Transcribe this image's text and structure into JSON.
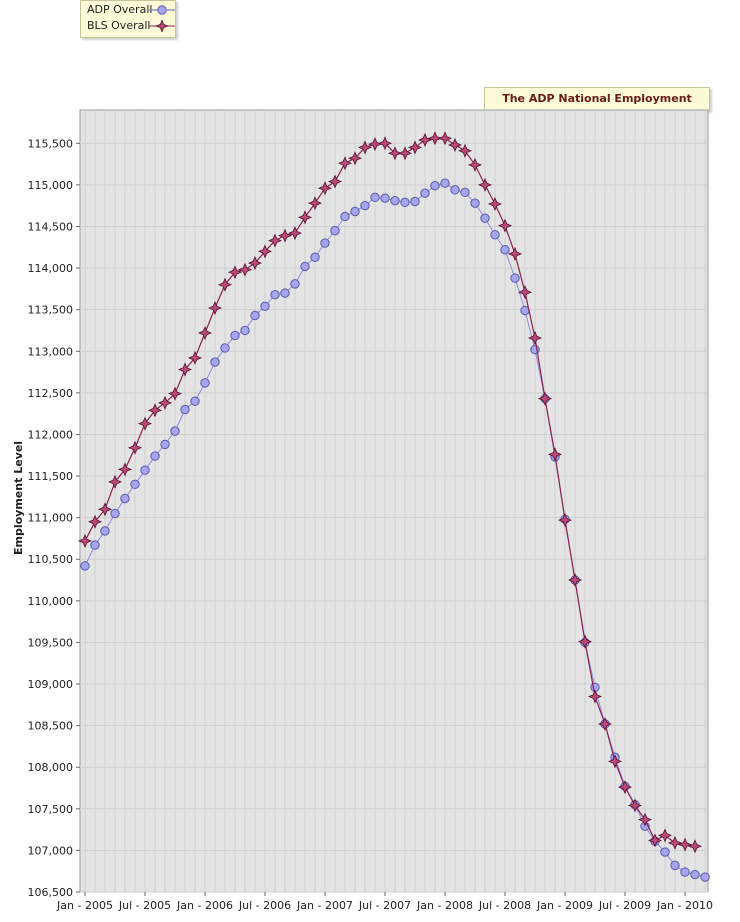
{
  "chart_data": {
    "type": "line",
    "title": "The ADP National Employment Report",
    "xlabel": "",
    "ylabel": "Employment Level",
    "ylim": [
      106500,
      115900
    ],
    "y_ticks": [
      106500,
      107000,
      107500,
      108000,
      108500,
      109000,
      109500,
      110000,
      110500,
      111000,
      111500,
      112000,
      112500,
      113000,
      113500,
      114000,
      114500,
      115000,
      115500
    ],
    "y_tick_labels": [
      "106,500",
      "107,000",
      "107,500",
      "108,000",
      "108,500",
      "109,000",
      "109,500",
      "110,000",
      "110,500",
      "111,000",
      "111,500",
      "112,000",
      "112,500",
      "113,000",
      "113,500",
      "114,000",
      "114,500",
      "115,000",
      "115,500"
    ],
    "x_tick_labels": [
      {
        "label": "Jan - 2005",
        "index": 0
      },
      {
        "label": "Jul - 2005",
        "index": 6
      },
      {
        "label": "Jan - 2006",
        "index": 12
      },
      {
        "label": "Jul - 2006",
        "index": 18
      },
      {
        "label": "Jan - 2007",
        "index": 24
      },
      {
        "label": "Jul - 2007",
        "index": 30
      },
      {
        "label": "Jan - 2008",
        "index": 36
      },
      {
        "label": "Jul - 2008",
        "index": 42
      },
      {
        "label": "Jan - 2009",
        "index": 48
      },
      {
        "label": "Jul - 2009",
        "index": 54
      },
      {
        "label": "Jan - 2010",
        "index": 60
      }
    ],
    "grid": true,
    "legend_position": "top-left",
    "series": [
      {
        "name": "ADP Overall",
        "color": "#9999ee",
        "marker": "circle",
        "values": [
          110420,
          110670,
          110840,
          111050,
          111230,
          111400,
          111570,
          111740,
          111880,
          112040,
          112300,
          112400,
          112620,
          112870,
          113040,
          113190,
          113250,
          113430,
          113540,
          113680,
          113700,
          113810,
          114020,
          114130,
          114300,
          114450,
          114620,
          114680,
          114750,
          114850,
          114840,
          114810,
          114790,
          114800,
          114900,
          114990,
          115020,
          114940,
          114910,
          114780,
          114600,
          114400,
          114220,
          113880,
          113490,
          113020,
          112430,
          111730,
          110980,
          110250,
          109500,
          108960,
          108520,
          108120,
          107770,
          107550,
          107290,
          107110,
          106980,
          106820,
          106740,
          106710,
          106680
        ]
      },
      {
        "name": "BLS Overall",
        "color": "#8a2050",
        "marker": "star",
        "values": [
          110720,
          110950,
          111100,
          111430,
          111580,
          111840,
          112130,
          112290,
          112380,
          112490,
          112780,
          112920,
          113220,
          113520,
          113800,
          113950,
          113980,
          114060,
          114200,
          114330,
          114390,
          114420,
          114610,
          114780,
          114960,
          115040,
          115260,
          115320,
          115450,
          115490,
          115500,
          115380,
          115380,
          115450,
          115540,
          115560,
          115560,
          115480,
          115410,
          115240,
          115000,
          114770,
          114510,
          114170,
          113710,
          113160,
          112430,
          111760,
          110970,
          110250,
          109510,
          108850,
          108520,
          108070,
          107760,
          107540,
          107370,
          107120,
          107180,
          107090,
          107070,
          107050
        ]
      }
    ]
  }
}
